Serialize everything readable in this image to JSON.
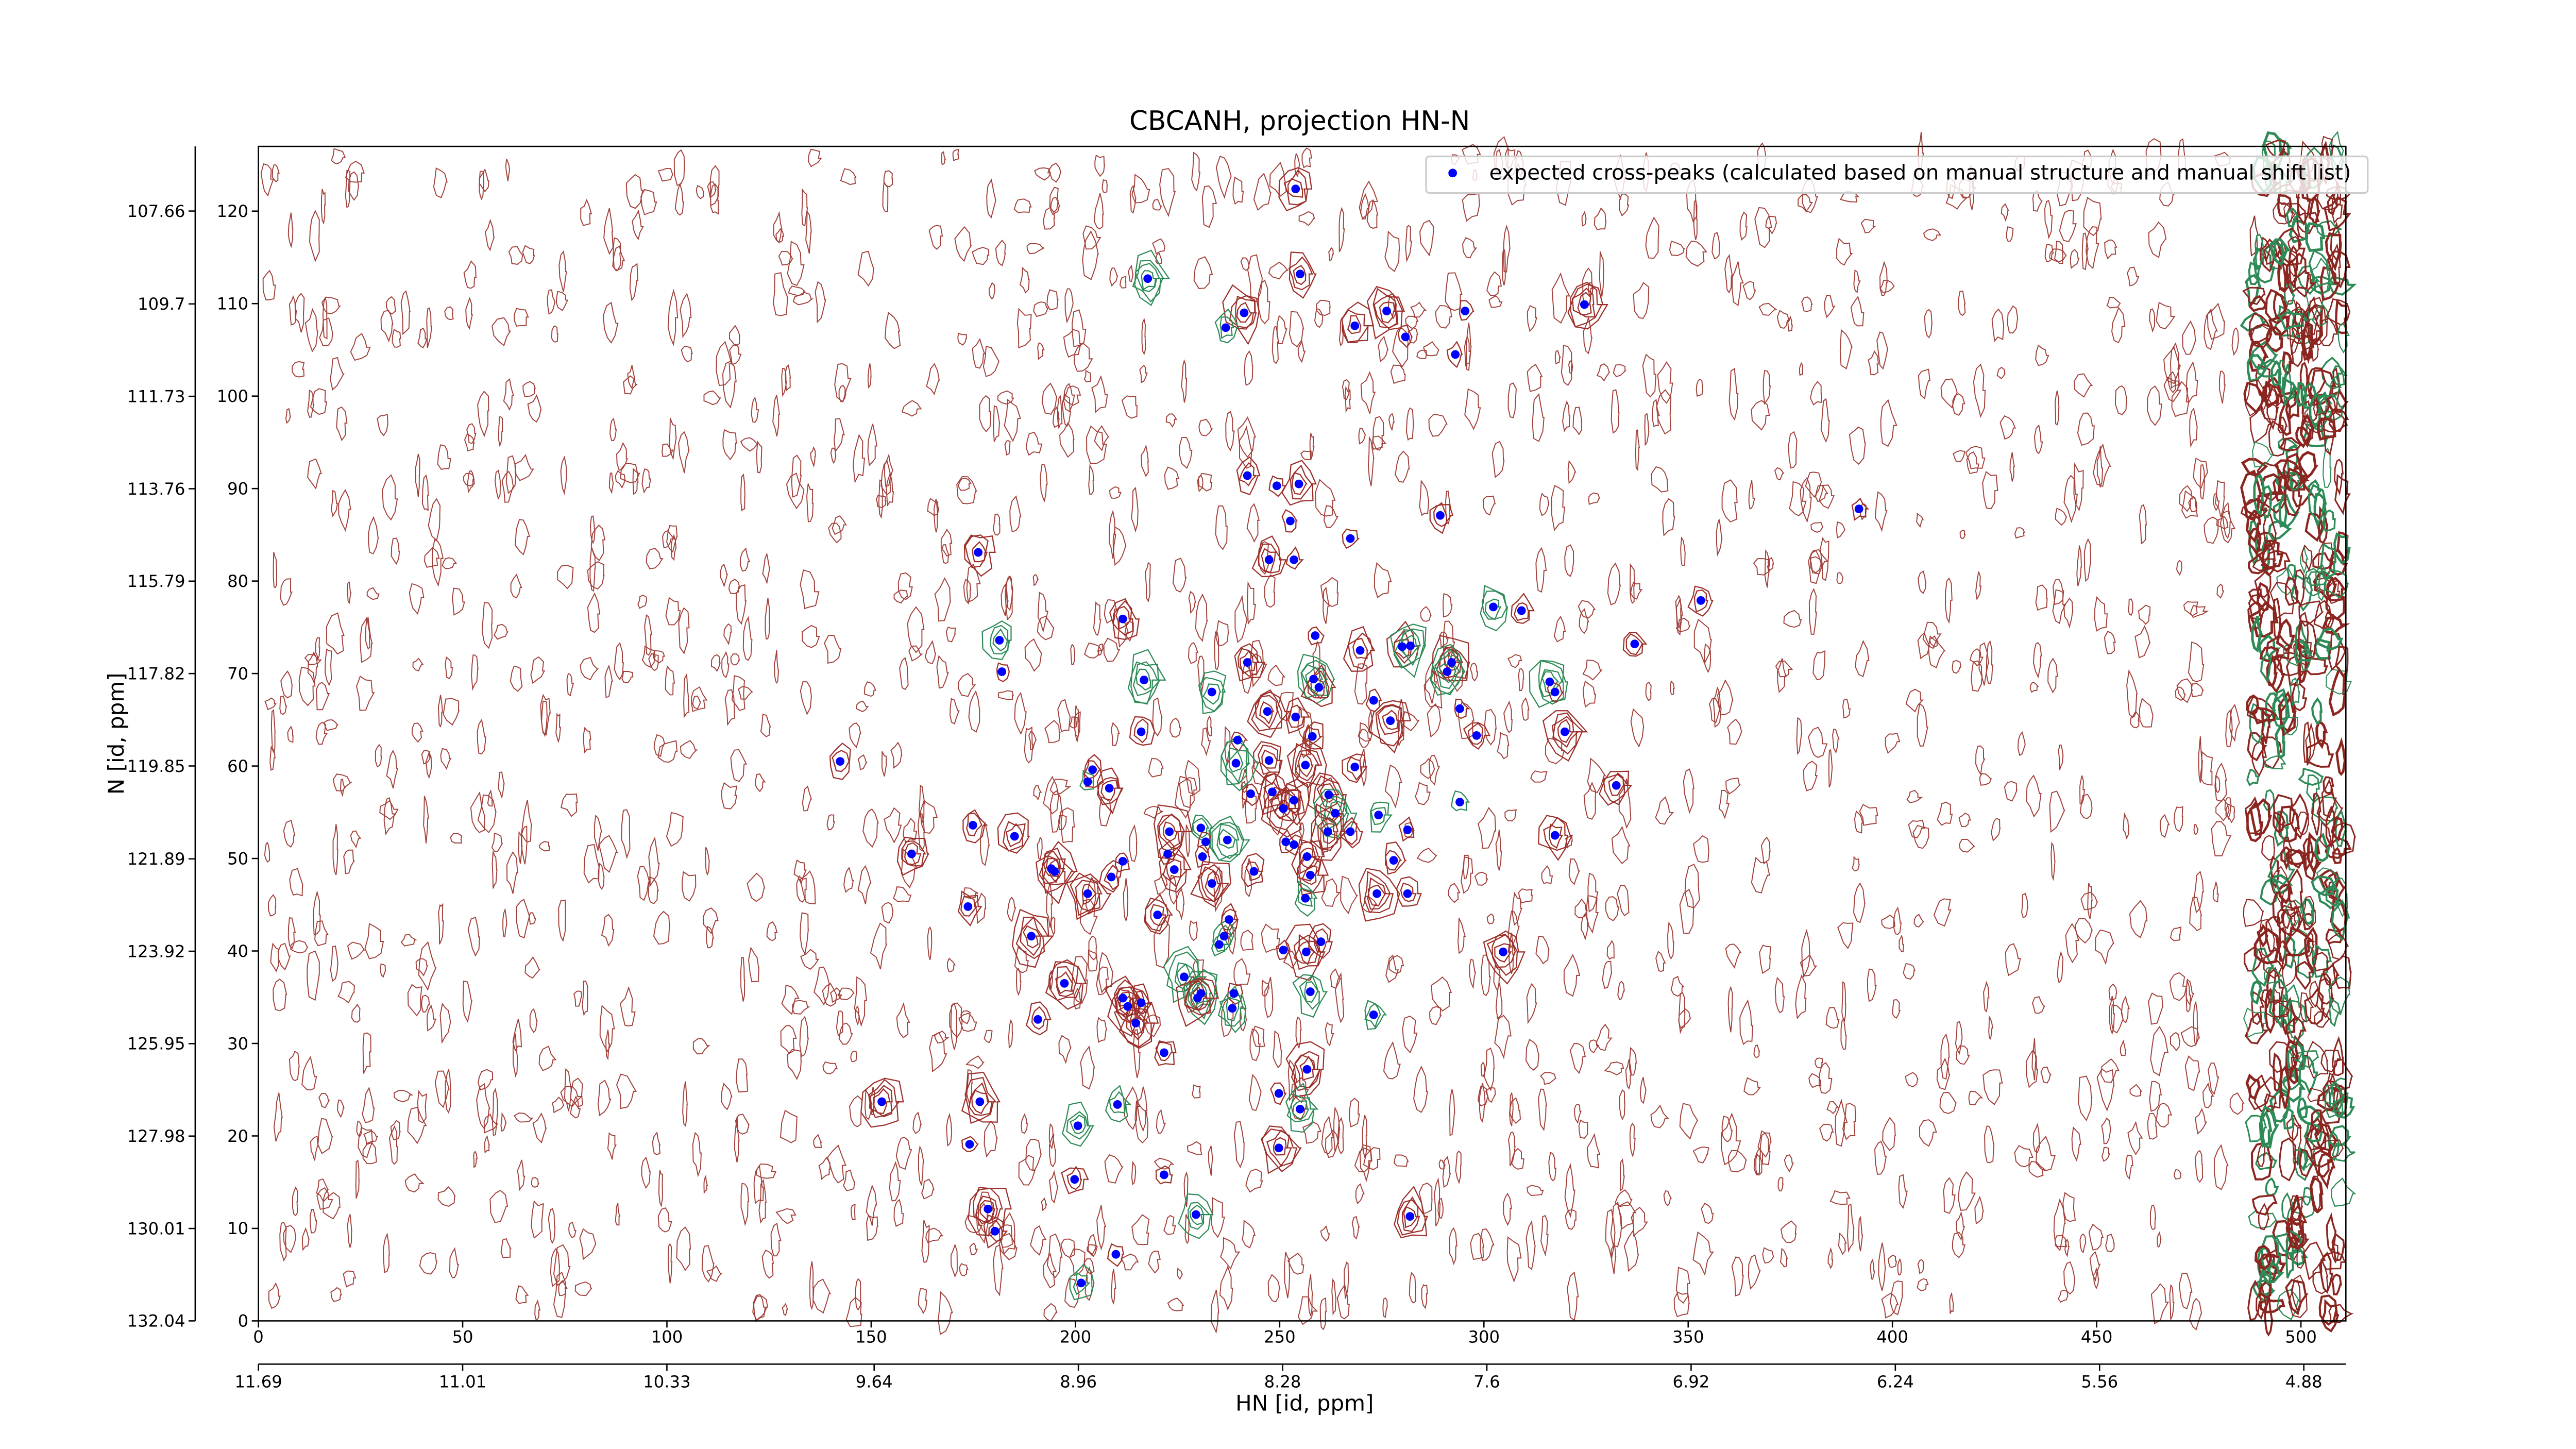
{
  "chart_data": {
    "type": "scatter",
    "title": "CBCANH, projection HN-N",
    "xlabel": "HN [id, ppm]",
    "ylabel": "N [id, ppm]",
    "xlim": [
      0,
      511
    ],
    "xticks": [
      0,
      50,
      100,
      150,
      200,
      250,
      300,
      350,
      400,
      450,
      500
    ],
    "ylim": [
      0,
      127
    ],
    "yticks": [
      0,
      10,
      20,
      30,
      40,
      50,
      60,
      70,
      80,
      90,
      100,
      110,
      120
    ],
    "x2lim": [
      11.69,
      4.74
    ],
    "x2ticks": [
      11.69,
      11.01,
      10.33,
      9.64,
      8.96,
      8.28,
      7.6,
      6.92,
      6.24,
      5.56,
      4.88
    ],
    "y2lim": [
      132.04,
      106.24
    ],
    "y2ticks": [
      132.04,
      130.01,
      127.98,
      125.95,
      123.92,
      121.89,
      119.85,
      117.82,
      115.79,
      113.76,
      111.73,
      109.7,
      107.66
    ],
    "legend": "upper right",
    "series": [
      {
        "name": "expected cross-peaks (calculated based on manual structure and manual shift list)",
        "color": "#0000ff",
        "x": [
          253.9,
          255,
          217.7,
          241.3,
          236.8,
          276.2,
          268.4,
          280.8,
          295.4,
          293,
          324.6,
          391.8,
          242.1,
          249.3,
          254.7,
          252.6,
          289.3,
          267.3,
          176.2,
          247.4,
          253.5,
          353.1,
          302.3,
          309.2,
          211.6,
          258.7,
          181.4,
          336.9,
          269.7,
          280,
          282,
          242.1,
          292.1,
          291,
          182,
          258.3,
          259.6,
          216.8,
          233.4,
          316.1,
          317.4,
          273,
          294.1,
          247,
          253.9,
          277.1,
          216.1,
          298.2,
          319.8,
          239.7,
          258,
          247.4,
          239.3,
          142.4,
          256.3,
          268.4,
          204.2,
          203,
          208.3,
          332.4,
          242.9,
          248.2,
          253.5,
          262,
          294.1,
          250.9,
          263.6,
          274.2,
          174.9,
          230.7,
          223,
          281.3,
          261.8,
          185.1,
          267.3,
          317.4,
          231.9,
          237.2,
          251.5,
          253.5,
          159.9,
          222.6,
          231.1,
          256.7,
          277.9,
          211.6,
          194.1,
          194.9,
          224.2,
          208.8,
          243.7,
          257.5,
          233.4,
          203,
          273.8,
          281.3,
          256.3,
          173.7,
          220.1,
          237.6,
          236.4,
          189.2,
          235.2,
          260.1,
          250.9,
          256.5,
          304.7,
          226.6,
          197.3,
          230.7,
          229.9,
          238.8,
          257.5,
          211.6,
          216.1,
          212.8,
          238.4,
          273,
          190.8,
          214.8,
          221.7,
          256.7,
          176.6,
          152.6,
          210.3,
          249.8,
          255,
          200.6,
          174.1,
          249.8,
          199.8,
          221.7,
          178.6,
          229.5,
          281.9,
          180.3,
          209.9,
          201.4
        ],
        "values": [
          122.4,
          113.2,
          112.7,
          109,
          107.4,
          109.2,
          107.6,
          106.4,
          109.2,
          104.5,
          109.9,
          87.8,
          91.4,
          90.3,
          90.5,
          86.5,
          87.1,
          84.6,
          83.1,
          82.3,
          82.3,
          77.9,
          77.2,
          76.8,
          75.9,
          74.1,
          73.6,
          73.2,
          72.5,
          72.9,
          73,
          71.2,
          71.2,
          70.2,
          70.2,
          69.4,
          68.5,
          69.3,
          68,
          69.1,
          68,
          67.1,
          66.2,
          65.9,
          65.3,
          64.9,
          63.7,
          63.3,
          63.7,
          62.8,
          63.2,
          60.6,
          60.3,
          60.5,
          60.1,
          59.9,
          59.6,
          58.3,
          57.6,
          57.9,
          57,
          57.2,
          56.3,
          56.9,
          56.1,
          55.4,
          54.9,
          54.7,
          53.6,
          53.3,
          52.9,
          53.1,
          52.9,
          52.4,
          52.9,
          52.5,
          51.8,
          52,
          51.8,
          51.5,
          50.5,
          50.5,
          50.2,
          50.2,
          49.8,
          49.7,
          48.9,
          48.6,
          48.8,
          48,
          48.6,
          48.2,
          47.3,
          46.2,
          46.2,
          46.2,
          45.7,
          44.8,
          43.9,
          43.4,
          41.6,
          41.6,
          40.7,
          41,
          40.1,
          39.9,
          39.9,
          37.2,
          36.5,
          35.4,
          34.9,
          35.4,
          35.6,
          34.9,
          34.4,
          34,
          33.8,
          33.1,
          32.6,
          32.2,
          29,
          27.2,
          23.7,
          23.7,
          23.4,
          24.6,
          22.9,
          21.1,
          19.1,
          18.7,
          15.3,
          15.8,
          12.1,
          11.5,
          11.3,
          9.7,
          7.2,
          4.1
        ]
      }
    ]
  }
}
